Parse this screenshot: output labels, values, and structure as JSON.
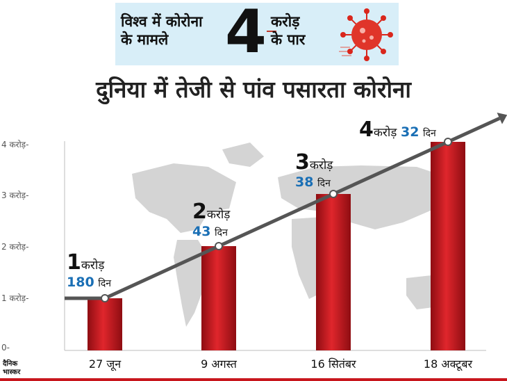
{
  "banner": {
    "left_line1": "विश्व में कोरोना",
    "left_line2": "के मामले",
    "big_number": "4",
    "right_line1": "करोड़",
    "right_line2": "के पार"
  },
  "headline": "दुनिया में तेजी से पांव पसारता कोरोना",
  "logo": {
    "line1": "दैनिक",
    "line2": "भास्कर"
  },
  "colors": {
    "bar": "#c8161d",
    "arrow": "#555555",
    "banner_bg": "#d8eef8",
    "days": "#1a6fb5",
    "virus": "#d9261c"
  },
  "chart_data": {
    "type": "bar",
    "title": "दुनिया में तेजी से पांव पसारता कोरोना",
    "categories": [
      "27 जून",
      "9 अगस्त",
      "16 सितंबर",
      "18 अक्टूबर"
    ],
    "values": [
      1,
      2,
      3,
      4
    ],
    "ylim": [
      0,
      4
    ],
    "yticks": [
      "0-",
      "1 करोड़-",
      "2 करोड़-",
      "3 करोड़-",
      "4 करोड़-"
    ],
    "annotations": [
      {
        "num": "1",
        "unit": "करोड़",
        "days": "180",
        "days_label": "दिन"
      },
      {
        "num": "2",
        "unit": "करोड़",
        "days": "43",
        "days_label": "दिन"
      },
      {
        "num": "3",
        "unit": "करोड़",
        "days": "38",
        "days_label": "दिन"
      },
      {
        "num": "4",
        "unit": "करोड़",
        "days": "32",
        "days_label": "दिन"
      }
    ],
    "grid": false,
    "background": "world map"
  }
}
